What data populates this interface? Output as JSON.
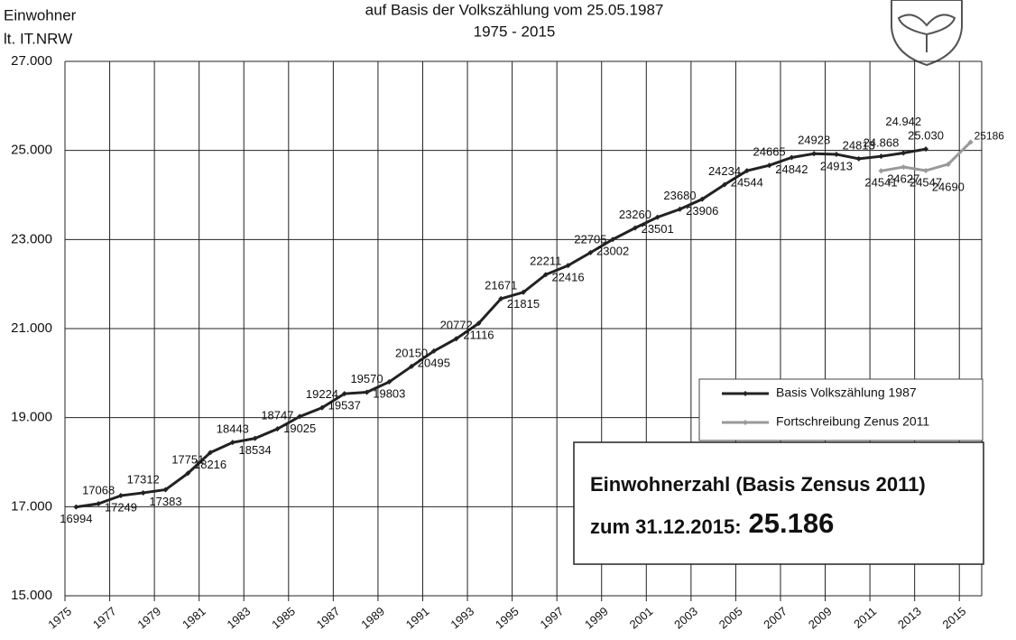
{
  "chart_data": {
    "type": "line",
    "title": "auf Basis der Volkszählung vom 25.05.1987",
    "subtitle": "1975 - 2015",
    "y_label": [
      "Einwohner",
      "lt. IT.NRW"
    ],
    "categories": [
      "1975",
      null,
      "1977",
      null,
      "1979",
      null,
      "1981",
      null,
      "1983",
      null,
      "1985",
      null,
      "1987",
      null,
      "1989",
      null,
      "1991",
      null,
      "1993",
      null,
      "1995",
      null,
      "1997",
      null,
      "1999",
      null,
      "2001",
      null,
      "2003",
      null,
      "2005",
      null,
      "2007",
      null,
      "2009",
      null,
      "2011",
      null,
      "2013",
      null,
      "2015"
    ],
    "ylim": [
      15000,
      27000
    ],
    "yticks": [
      {
        "value": 15000,
        "label": "15.000"
      },
      {
        "value": 17000,
        "label": "17.000"
      },
      {
        "value": 19000,
        "label": "19.000"
      },
      {
        "value": 21000,
        "label": "21.000"
      },
      {
        "value": 23000,
        "label": "23.000"
      },
      {
        "value": 25000,
        "label": "25.000"
      },
      {
        "value": 27000,
        "label": "27.000"
      }
    ],
    "grid": true,
    "series": [
      {
        "name": "Basis Volkszählung 1987",
        "color": "#222222",
        "values": [
          16994,
          17068,
          17249,
          17312,
          17383,
          17751,
          18216,
          18443,
          18534,
          18747,
          19025,
          19224,
          19537,
          19570,
          19803,
          20150,
          20495,
          20772,
          21116,
          21671,
          21815,
          22211,
          22416,
          22705,
          23002,
          23260,
          23501,
          23680,
          23906,
          24234,
          24544,
          24665,
          24842,
          24928,
          24913,
          24813,
          24868,
          24942,
          25030,
          null,
          null
        ],
        "value_labels": [
          null,
          null,
          null,
          null,
          null,
          null,
          null,
          null,
          null,
          null,
          null,
          null,
          null,
          null,
          null,
          null,
          null,
          null,
          null,
          null,
          null,
          null,
          null,
          null,
          null,
          null,
          null,
          null,
          null,
          null,
          null,
          null,
          null,
          null,
          null,
          null,
          "24.868",
          "24.942",
          "25.030",
          null,
          null
        ]
      },
      {
        "name": "Fortschreibung Zenus 2011",
        "color": "#999999",
        "values": [
          null,
          null,
          null,
          null,
          null,
          null,
          null,
          null,
          null,
          null,
          null,
          null,
          null,
          null,
          null,
          null,
          null,
          null,
          null,
          null,
          null,
          null,
          null,
          null,
          null,
          null,
          null,
          null,
          null,
          null,
          null,
          null,
          null,
          null,
          null,
          null,
          24541,
          24627,
          24547,
          24690,
          25186
        ]
      }
    ],
    "annotation": {
      "line1": "Einwohnerzahl (Basis Zensus 2011)",
      "line2": "zum 31.12.2015:",
      "highlight": "25.186"
    }
  }
}
